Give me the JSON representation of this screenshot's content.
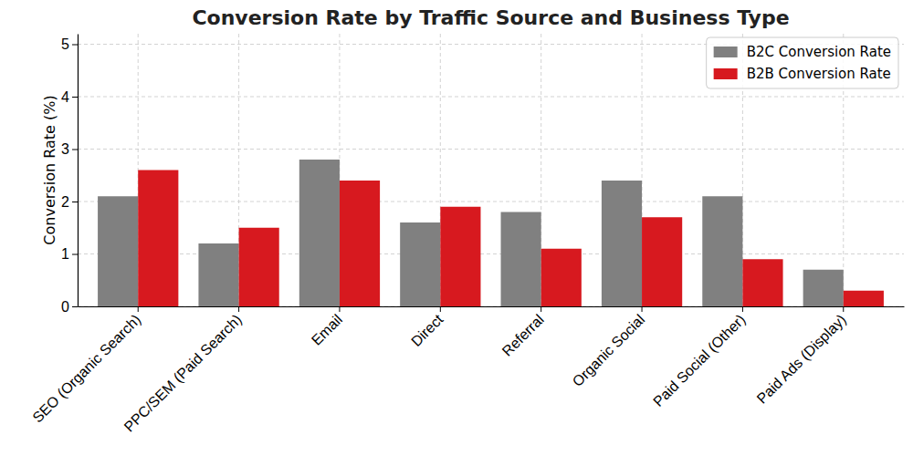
{
  "chart_data": {
    "type": "bar",
    "title": "Conversion Rate by Traffic Source and Business Type",
    "y_label": "Conversion Rate (%)",
    "categories": [
      "SEO (Organic Search)",
      "PPC/SEM (Paid Search)",
      "Email",
      "Direct",
      "Referral",
      "Organic Social",
      "Paid Social (Other)",
      "Paid Ads (Display)"
    ],
    "series": [
      {
        "name": "B2C Conversion Rate",
        "color": "#808080",
        "values": [
          2.1,
          1.2,
          2.8,
          1.6,
          1.8,
          2.4,
          2.1,
          0.7
        ]
      },
      {
        "name": "B2B Conversion Rate",
        "color": "#d7191f",
        "values": [
          2.6,
          1.5,
          2.4,
          1.9,
          1.1,
          1.7,
          0.9,
          0.3
        ]
      }
    ],
    "ylim": [
      0,
      5.2
    ],
    "yticks": [
      0,
      1,
      2,
      3,
      4,
      5
    ],
    "grid": true,
    "legend": "upper right"
  }
}
